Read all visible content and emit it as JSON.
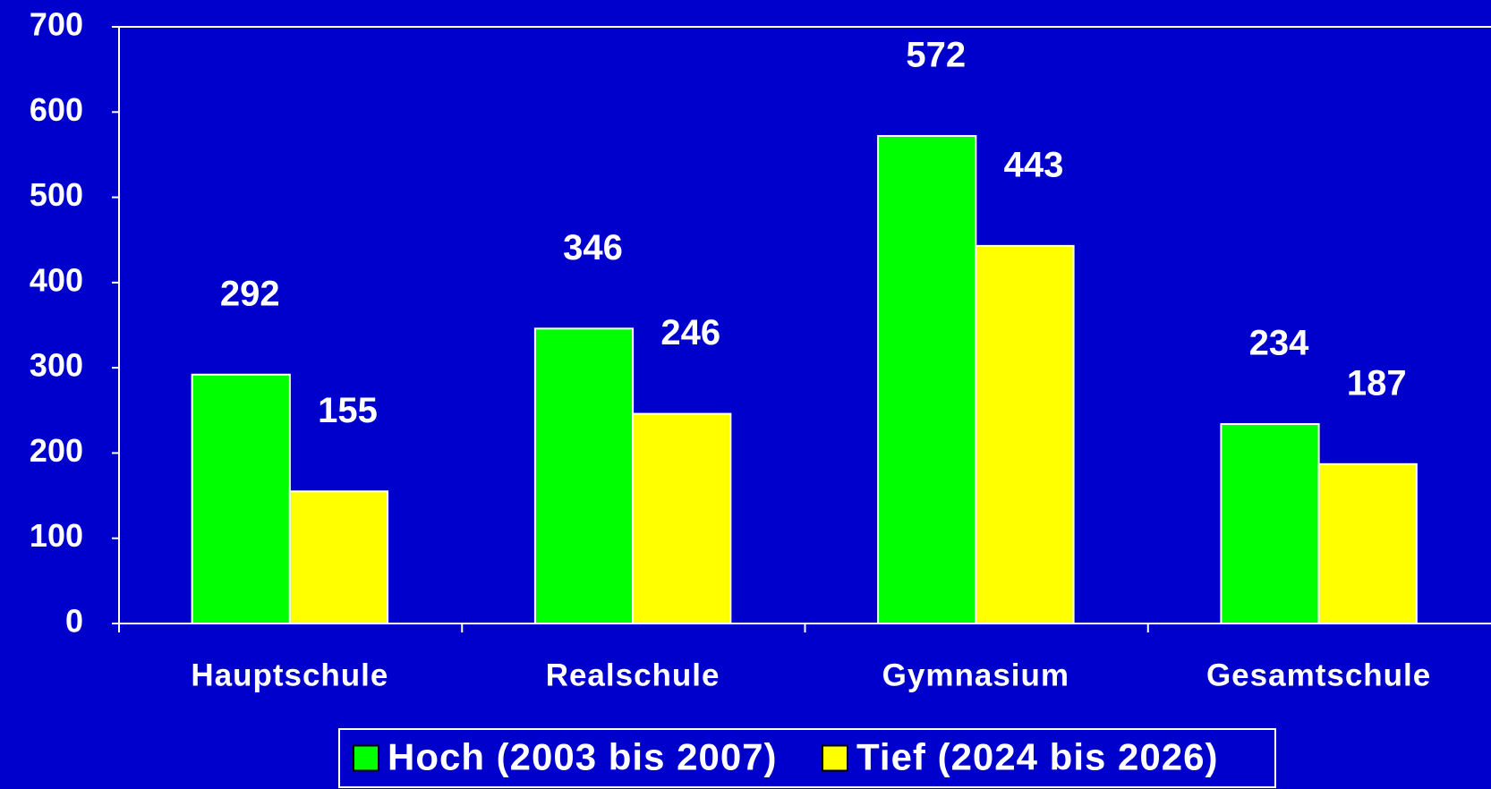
{
  "chart_data": {
    "type": "bar",
    "categories": [
      "Hauptschule",
      "Realschule",
      "Gymnasium",
      "Gesamtschule"
    ],
    "series": [
      {
        "name": "Hoch (2003 bis 2007)",
        "color": "#00ff00",
        "values": [
          292,
          346,
          572,
          234
        ]
      },
      {
        "name": "Tief (2024 bis 2026)",
        "color": "#ffff00",
        "values": [
          155,
          246,
          443,
          187
        ]
      }
    ],
    "ylim": [
      0,
      700
    ],
    "yticks": [
      0,
      100,
      200,
      300,
      400,
      500,
      600,
      700
    ],
    "legend": "bottom"
  }
}
